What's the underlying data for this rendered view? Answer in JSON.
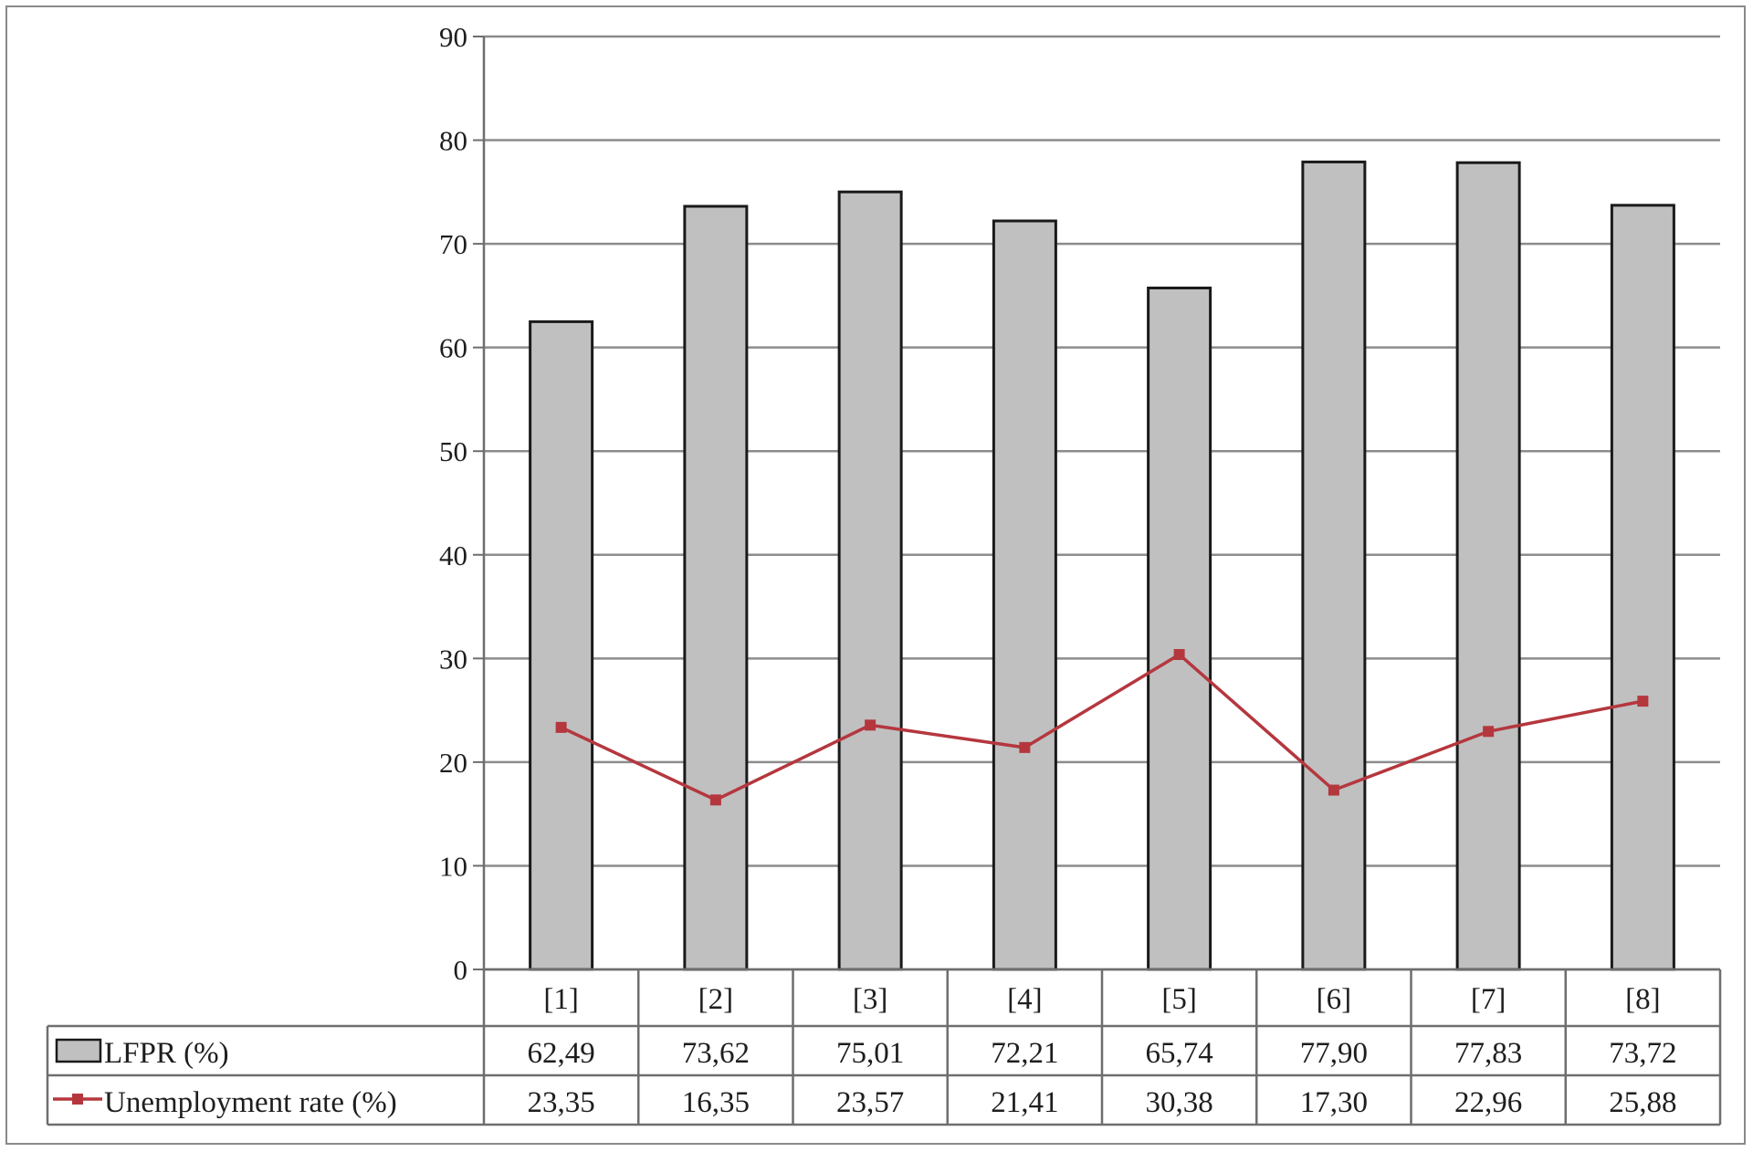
{
  "chart_data": {
    "type": "bar",
    "categories": [
      "[1]",
      "[2]",
      "[3]",
      "[4]",
      "[5]",
      "[6]",
      "[7]",
      "[8]"
    ],
    "series": [
      {
        "name": "LFPR (%)",
        "type": "bar",
        "values": [
          62.49,
          73.62,
          75.01,
          72.21,
          65.74,
          77.9,
          77.83,
          73.72
        ],
        "labels": [
          "62,49",
          "73,62",
          "75,01",
          "72,21",
          "65,74",
          "77,90",
          "77,83",
          "73,72"
        ],
        "color": "#c0c0c0"
      },
      {
        "name": "Unemployment rate (%)",
        "type": "line",
        "values": [
          23.35,
          16.35,
          23.57,
          21.41,
          30.38,
          17.3,
          22.96,
          25.88
        ],
        "labels": [
          "23,35",
          "16,35",
          "23,57",
          "21,41",
          "30,38",
          "17,30",
          "22,96",
          "25,88"
        ],
        "color": "#b5373e"
      }
    ],
    "ylim": [
      0,
      90
    ],
    "yticks": [
      0,
      10,
      20,
      30,
      40,
      50,
      60,
      70,
      80,
      90
    ],
    "grid": true,
    "legend": "data-table"
  }
}
